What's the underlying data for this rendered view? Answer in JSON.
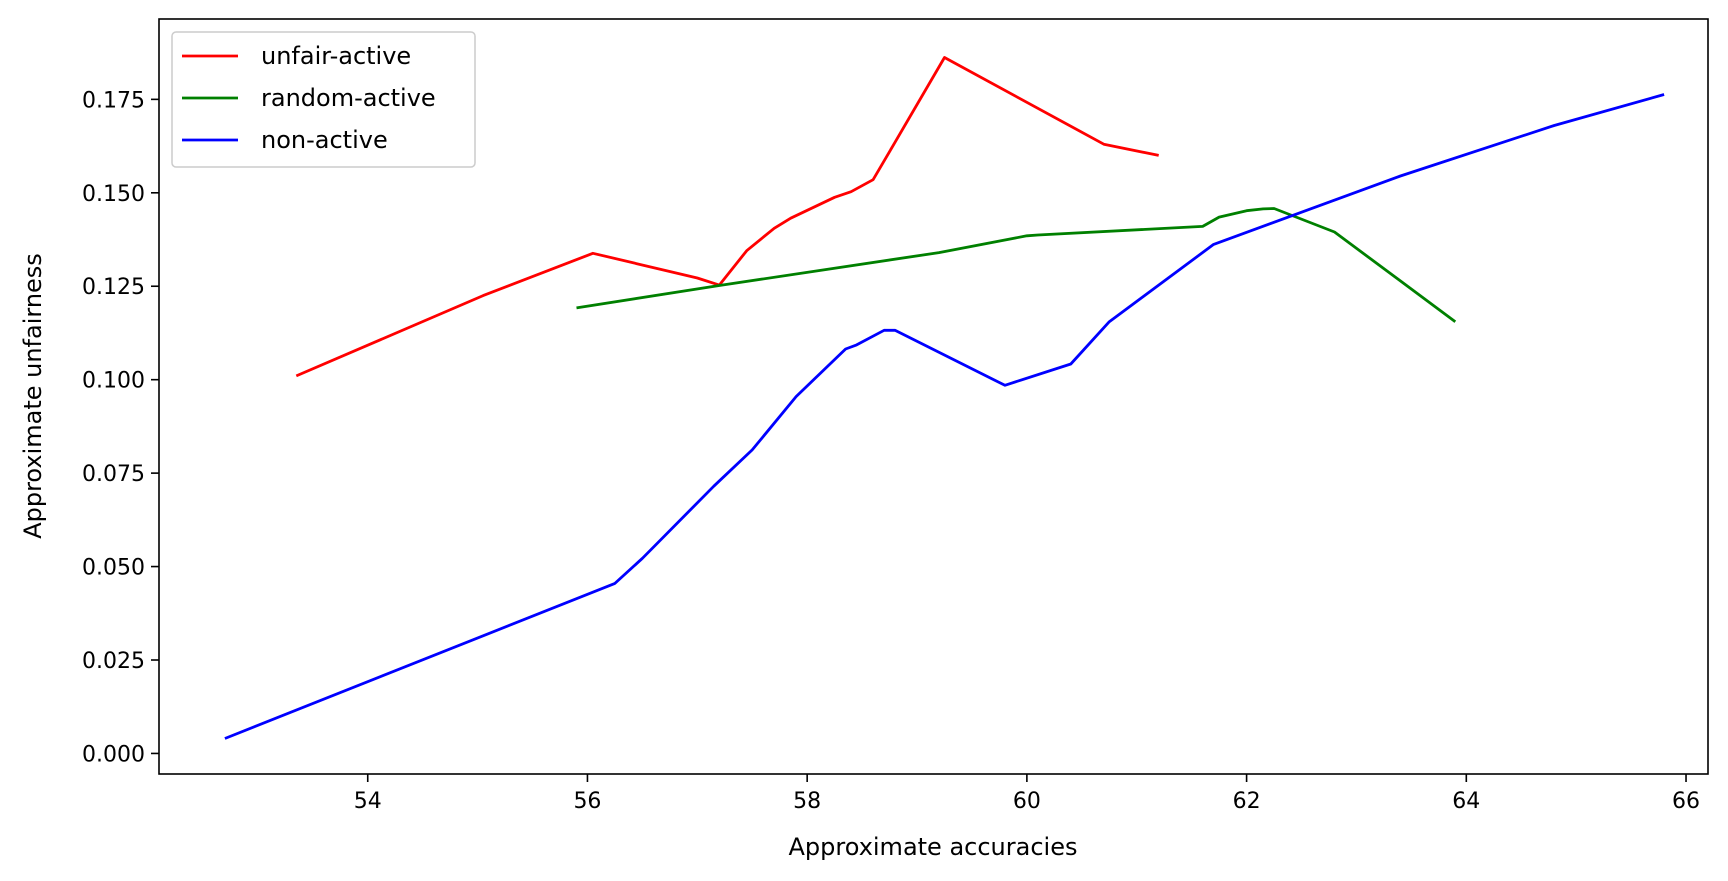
{
  "chart_data": {
    "type": "line",
    "title": "",
    "xlabel": "Approximate accuracies",
    "ylabel": "Approximate unfairness",
    "xlim": [
      52.1,
      66.2
    ],
    "ylim": [
      -0.0055,
      0.1965
    ],
    "x_ticks": [
      54,
      56,
      58,
      60,
      62,
      64,
      66
    ],
    "y_ticks": [
      0.0,
      0.025,
      0.05,
      0.075,
      0.1,
      0.125,
      0.15,
      0.175
    ],
    "x_tick_labels": [
      "54",
      "56",
      "58",
      "60",
      "62",
      "64",
      "66"
    ],
    "y_tick_labels": [
      "0.000",
      "0.025",
      "0.050",
      "0.075",
      "0.100",
      "0.125",
      "0.150",
      "0.175"
    ],
    "grid": false,
    "legend_position": "top-left",
    "series": [
      {
        "name": "unfair-active",
        "color": "#ff0000",
        "x": [
          53.35,
          55.05,
          56.05,
          57.0,
          57.2,
          57.45,
          57.7,
          57.85,
          58.25,
          58.4,
          58.6,
          58.8,
          59.25,
          60.7,
          61.2
        ],
        "y": [
          0.101,
          0.1225,
          0.1338,
          0.1272,
          0.1253,
          0.1345,
          0.1405,
          0.1432,
          0.1488,
          0.1503,
          0.1535,
          0.1635,
          0.1862,
          0.163,
          0.16
        ]
      },
      {
        "name": "random-active",
        "color": "#008000",
        "x": [
          55.9,
          57.2,
          59.2,
          60.0,
          60.1,
          61.6,
          61.75,
          62.0,
          62.15,
          62.25,
          62.8,
          63.9
        ],
        "y": [
          0.1192,
          0.1252,
          0.134,
          0.1385,
          0.1387,
          0.141,
          0.1435,
          0.1452,
          0.1457,
          0.1458,
          0.1395,
          0.1155
        ]
      },
      {
        "name": "non-active",
        "color": "#0000ff",
        "x": [
          52.7,
          56.25,
          56.5,
          57.15,
          57.5,
          57.9,
          58.35,
          58.45,
          58.7,
          58.8,
          59.8,
          60.4,
          60.75,
          61.7,
          63.4,
          64.8,
          65.8
        ],
        "y": [
          0.004,
          0.0455,
          0.0522,
          0.0715,
          0.0812,
          0.0955,
          0.1082,
          0.1093,
          0.1132,
          0.1132,
          0.0985,
          0.1042,
          0.1155,
          0.1362,
          0.1545,
          0.168,
          0.1763
        ]
      }
    ]
  }
}
